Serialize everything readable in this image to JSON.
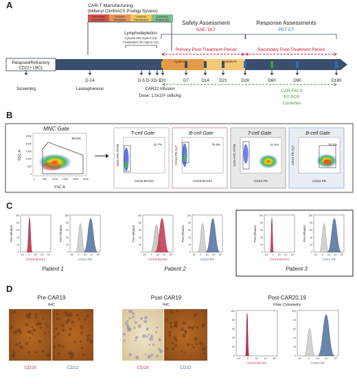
{
  "colors": {
    "navy": "#3a4f6e",
    "red": "#c8102e",
    "blue": "#2e6db4",
    "green": "#4a9a2e",
    "orange": "#e8a33d",
    "crimson": "#c1334f",
    "steel": "#4f6f9f",
    "grey": "#b9b9b9"
  },
  "panel_a": {
    "letter": "A",
    "manufacturing_title": "CAR-T Manufacturing",
    "manufacturing_subtitle": "(Miltenyi CliniMACS Prodigy System)",
    "steps": [
      {
        "line1": "CD4+/CD8+",
        "line2": "Enrichment",
        "color": "#d9554a"
      },
      {
        "line1": "TransAct",
        "line2": "Stimulation",
        "color": "#e8935a"
      },
      {
        "line1": "Lentiviral",
        "line2": "Transduction",
        "color": "#f0c75a"
      },
      {
        "line1": "Expansion",
        "line2": "Product QC",
        "color": "#7fbf8a"
      }
    ],
    "lymphodepletion_title": "Lymphodepletion",
    "lymphodepletion_line1": "Cytoxan 500 mg/m2 (x3)",
    "lymphodepletion_line2": "Fludarabine 30 mg/m2 (x3)",
    "safety_title": "Safety Assessment",
    "safety_sub": "SAE, DLT",
    "response_title": "Response Assessments",
    "response_sub": "PET-CT",
    "primary_period": "Primary Post-Treatment Period",
    "secondary_period": "Secondary Post-Treatment Period",
    "patient_line1": "Relapsed/Refractory",
    "patient_line2": "CD22+ LBCL",
    "inpatient": "Inpatient",
    "outpatient": "Outpatient",
    "days": [
      "D-14",
      "D-5",
      "D-3",
      "D-1",
      "D0",
      "D7",
      "D14",
      "D21",
      "D28",
      "D60",
      "D90",
      "D180"
    ],
    "screening": "Screening",
    "leukapheresis": "Leukapheresis",
    "infusion": "CAR22 Infusion",
    "dose": "Dose: 1.0x10⁶ cells/kg",
    "assays": [
      "CAR-FACS",
      "RT-PCR",
      "Cytokines"
    ]
  },
  "panel_b": {
    "letter": "B",
    "mnc_gate": "MNC Gate",
    "mnc_pct": "95.8%",
    "mnc_yaxis": "SSC-A",
    "mnc_xaxis": "FSC-A",
    "mnc_yticks": [
      "250K",
      "200K",
      "150K",
      "100K",
      "50K",
      "0"
    ],
    "mnc_xticks": [
      "0",
      "50K",
      "100K",
      "150K",
      "200K",
      "250K"
    ],
    "gates": [
      {
        "title": "T-cell Gate",
        "pct": "11.7%",
        "ylabel": "CD5-APC R700",
        "xlabel": "CD19-BV421"
      },
      {
        "title": "B-cell Gate",
        "pct": "75.9%",
        "ylabel": "CD10 PE Cy7",
        "xlabel": "CD19-BV421"
      },
      {
        "title": "T-cell Gate",
        "pct": "11.6%",
        "ylabel": "CD5-APC R700",
        "xlabel": "CD22-PE"
      },
      {
        "title": "B-cell Gate",
        "pct": "75.3%",
        "ylabel": "CD10 PE Cy7",
        "xlabel": "CD22-PE"
      }
    ]
  },
  "panel_c": {
    "letter": "C",
    "ylabel": "Pre-Infusion",
    "yticks": [
      "100",
      "80",
      "60",
      "40",
      "20",
      "0"
    ],
    "xticks": [
      "10³",
      "0",
      "10³",
      "10⁴",
      "10⁵"
    ],
    "xlabel_cd19": "CD19-BV421",
    "xlabel_cd22": "CD22-PE",
    "patients": [
      "Patient 1",
      "Patient 2",
      "Patient 3"
    ]
  },
  "panel_d": {
    "letter": "D",
    "pre_title": "Pre-CAR19",
    "pre_sub": "IHC",
    "post_title": "Post-CAR19",
    "post_sub": "IHC",
    "flow_title": "Post-CAR20.19",
    "flow_sub": "Flow Cytometry",
    "cd19": "CD19",
    "cd22": "CD22",
    "flow_x1": "CD19-BV421",
    "flow_x2": "CD22-PE"
  }
}
